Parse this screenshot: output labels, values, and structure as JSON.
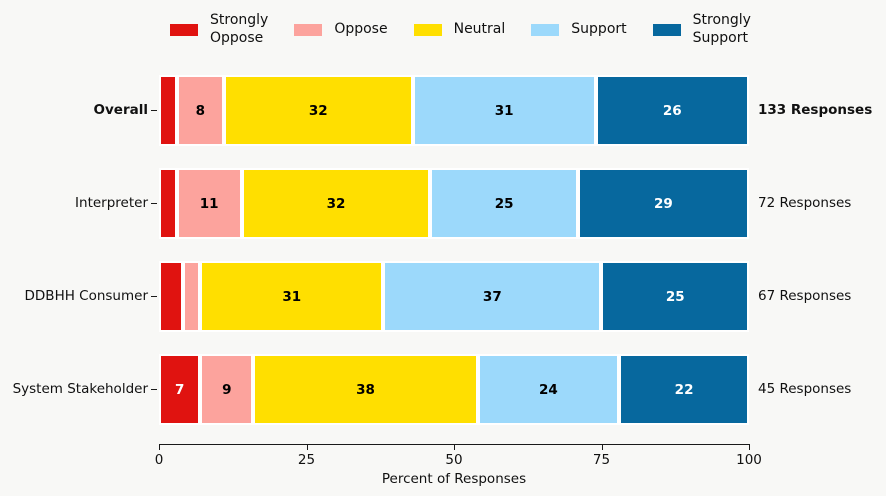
{
  "figure": {
    "background": "#f8f8f6",
    "text_color": "#111111",
    "axis_color": "#1a1a1a",
    "segment_edge_color": "#ffffff"
  },
  "chart_data": {
    "type": "bar",
    "orientation": "horizontal",
    "stacked": true,
    "title": "",
    "xlabel": "Percent of Responses",
    "ylabel": "",
    "xlim": [
      0,
      100
    ],
    "xticks": [
      0,
      25,
      50,
      75,
      100
    ],
    "grid": false,
    "legend_position": "top",
    "value_label_min_shown": 5,
    "categories": [
      "Overall",
      "Interpreter",
      "DDBHH Consumer",
      "System Stakeholder"
    ],
    "category_bold": [
      true,
      false,
      false,
      false
    ],
    "row_totals": [
      "133 Responses",
      "72 Responses",
      "67 Responses",
      "45 Responses"
    ],
    "row_total_bold": [
      true,
      false,
      false,
      false
    ],
    "series": [
      {
        "name": "Strongly Oppose",
        "legend_label": "Strongly\nOppose",
        "color": "#e01310",
        "label_color": "#ffffff",
        "values": [
          3,
          3,
          4,
          7
        ]
      },
      {
        "name": "Oppose",
        "legend_label": "Oppose",
        "color": "#fca39d",
        "label_color": "#000000",
        "values": [
          8,
          11,
          3,
          9
        ]
      },
      {
        "name": "Neutral",
        "legend_label": "Neutral",
        "color": "#ffdf00",
        "label_color": "#000000",
        "values": [
          32,
          32,
          31,
          38
        ]
      },
      {
        "name": "Support",
        "legend_label": "Support",
        "color": "#9cd9fb",
        "label_color": "#000000",
        "values": [
          31,
          25,
          37,
          24
        ]
      },
      {
        "name": "Strongly Support",
        "legend_label": "Strongly\nSupport",
        "color": "#07689e",
        "label_color": "#ffffff",
        "values": [
          26,
          29,
          25,
          22
        ]
      }
    ]
  }
}
